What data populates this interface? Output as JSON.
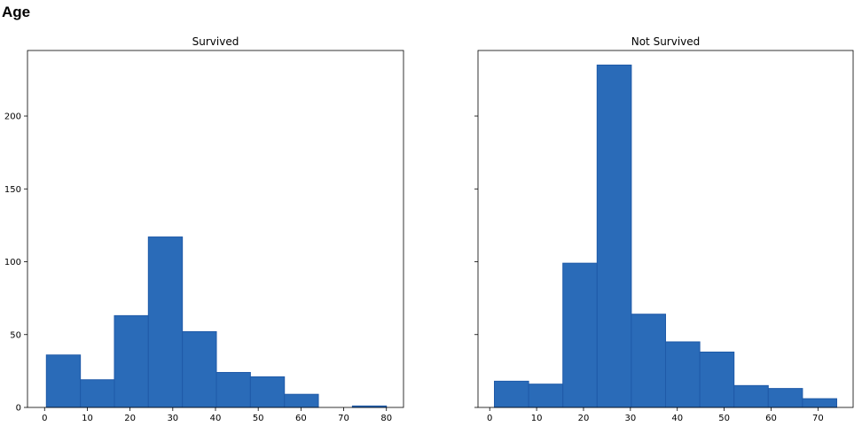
{
  "page": {
    "title": "Age"
  },
  "colors": {
    "bar_fill": "#2a6bb8",
    "bar_edge": "#1f5aa8",
    "axis": "#000000"
  },
  "chart_data": [
    {
      "type": "bar",
      "title": "Survived",
      "xlabel": "",
      "ylabel": "",
      "xlim": [
        -4,
        84
      ],
      "ylim": [
        0,
        245
      ],
      "xticks": [
        0,
        10,
        20,
        30,
        40,
        50,
        60,
        70,
        80
      ],
      "yticks": [
        0,
        50,
        100,
        150,
        200
      ],
      "bins": [
        {
          "x0": 0.42,
          "x1": 8.38,
          "value": 36
        },
        {
          "x0": 8.38,
          "x1": 16.34,
          "value": 19
        },
        {
          "x0": 16.34,
          "x1": 24.29,
          "value": 63
        },
        {
          "x0": 24.29,
          "x1": 32.25,
          "value": 117
        },
        {
          "x0": 32.25,
          "x1": 40.21,
          "value": 52
        },
        {
          "x0": 40.21,
          "x1": 48.17,
          "value": 24
        },
        {
          "x0": 48.17,
          "x1": 56.13,
          "value": 21
        },
        {
          "x0": 56.13,
          "x1": 64.08,
          "value": 9
        },
        {
          "x0": 64.08,
          "x1": 72.04,
          "value": 0
        },
        {
          "x0": 72.04,
          "x1": 80.0,
          "value": 1
        }
      ]
    },
    {
      "type": "bar",
      "title": "Not Survived",
      "xlabel": "",
      "ylabel": "",
      "xlim": [
        -2.5,
        77.5
      ],
      "ylim": [
        0,
        245
      ],
      "xticks": [
        0,
        10,
        20,
        30,
        40,
        50,
        60,
        70
      ],
      "yticks": [
        0,
        50,
        100,
        150,
        200
      ],
      "bins": [
        {
          "x0": 1.0,
          "x1": 8.3,
          "value": 18
        },
        {
          "x0": 8.3,
          "x1": 15.6,
          "value": 16
        },
        {
          "x0": 15.6,
          "x1": 22.9,
          "value": 99
        },
        {
          "x0": 22.9,
          "x1": 30.2,
          "value": 235
        },
        {
          "x0": 30.2,
          "x1": 37.5,
          "value": 64
        },
        {
          "x0": 37.5,
          "x1": 44.8,
          "value": 45
        },
        {
          "x0": 44.8,
          "x1": 52.1,
          "value": 38
        },
        {
          "x0": 52.1,
          "x1": 59.4,
          "value": 15
        },
        {
          "x0": 59.4,
          "x1": 66.7,
          "value": 13
        },
        {
          "x0": 66.7,
          "x1": 74.0,
          "value": 6
        }
      ]
    }
  ]
}
